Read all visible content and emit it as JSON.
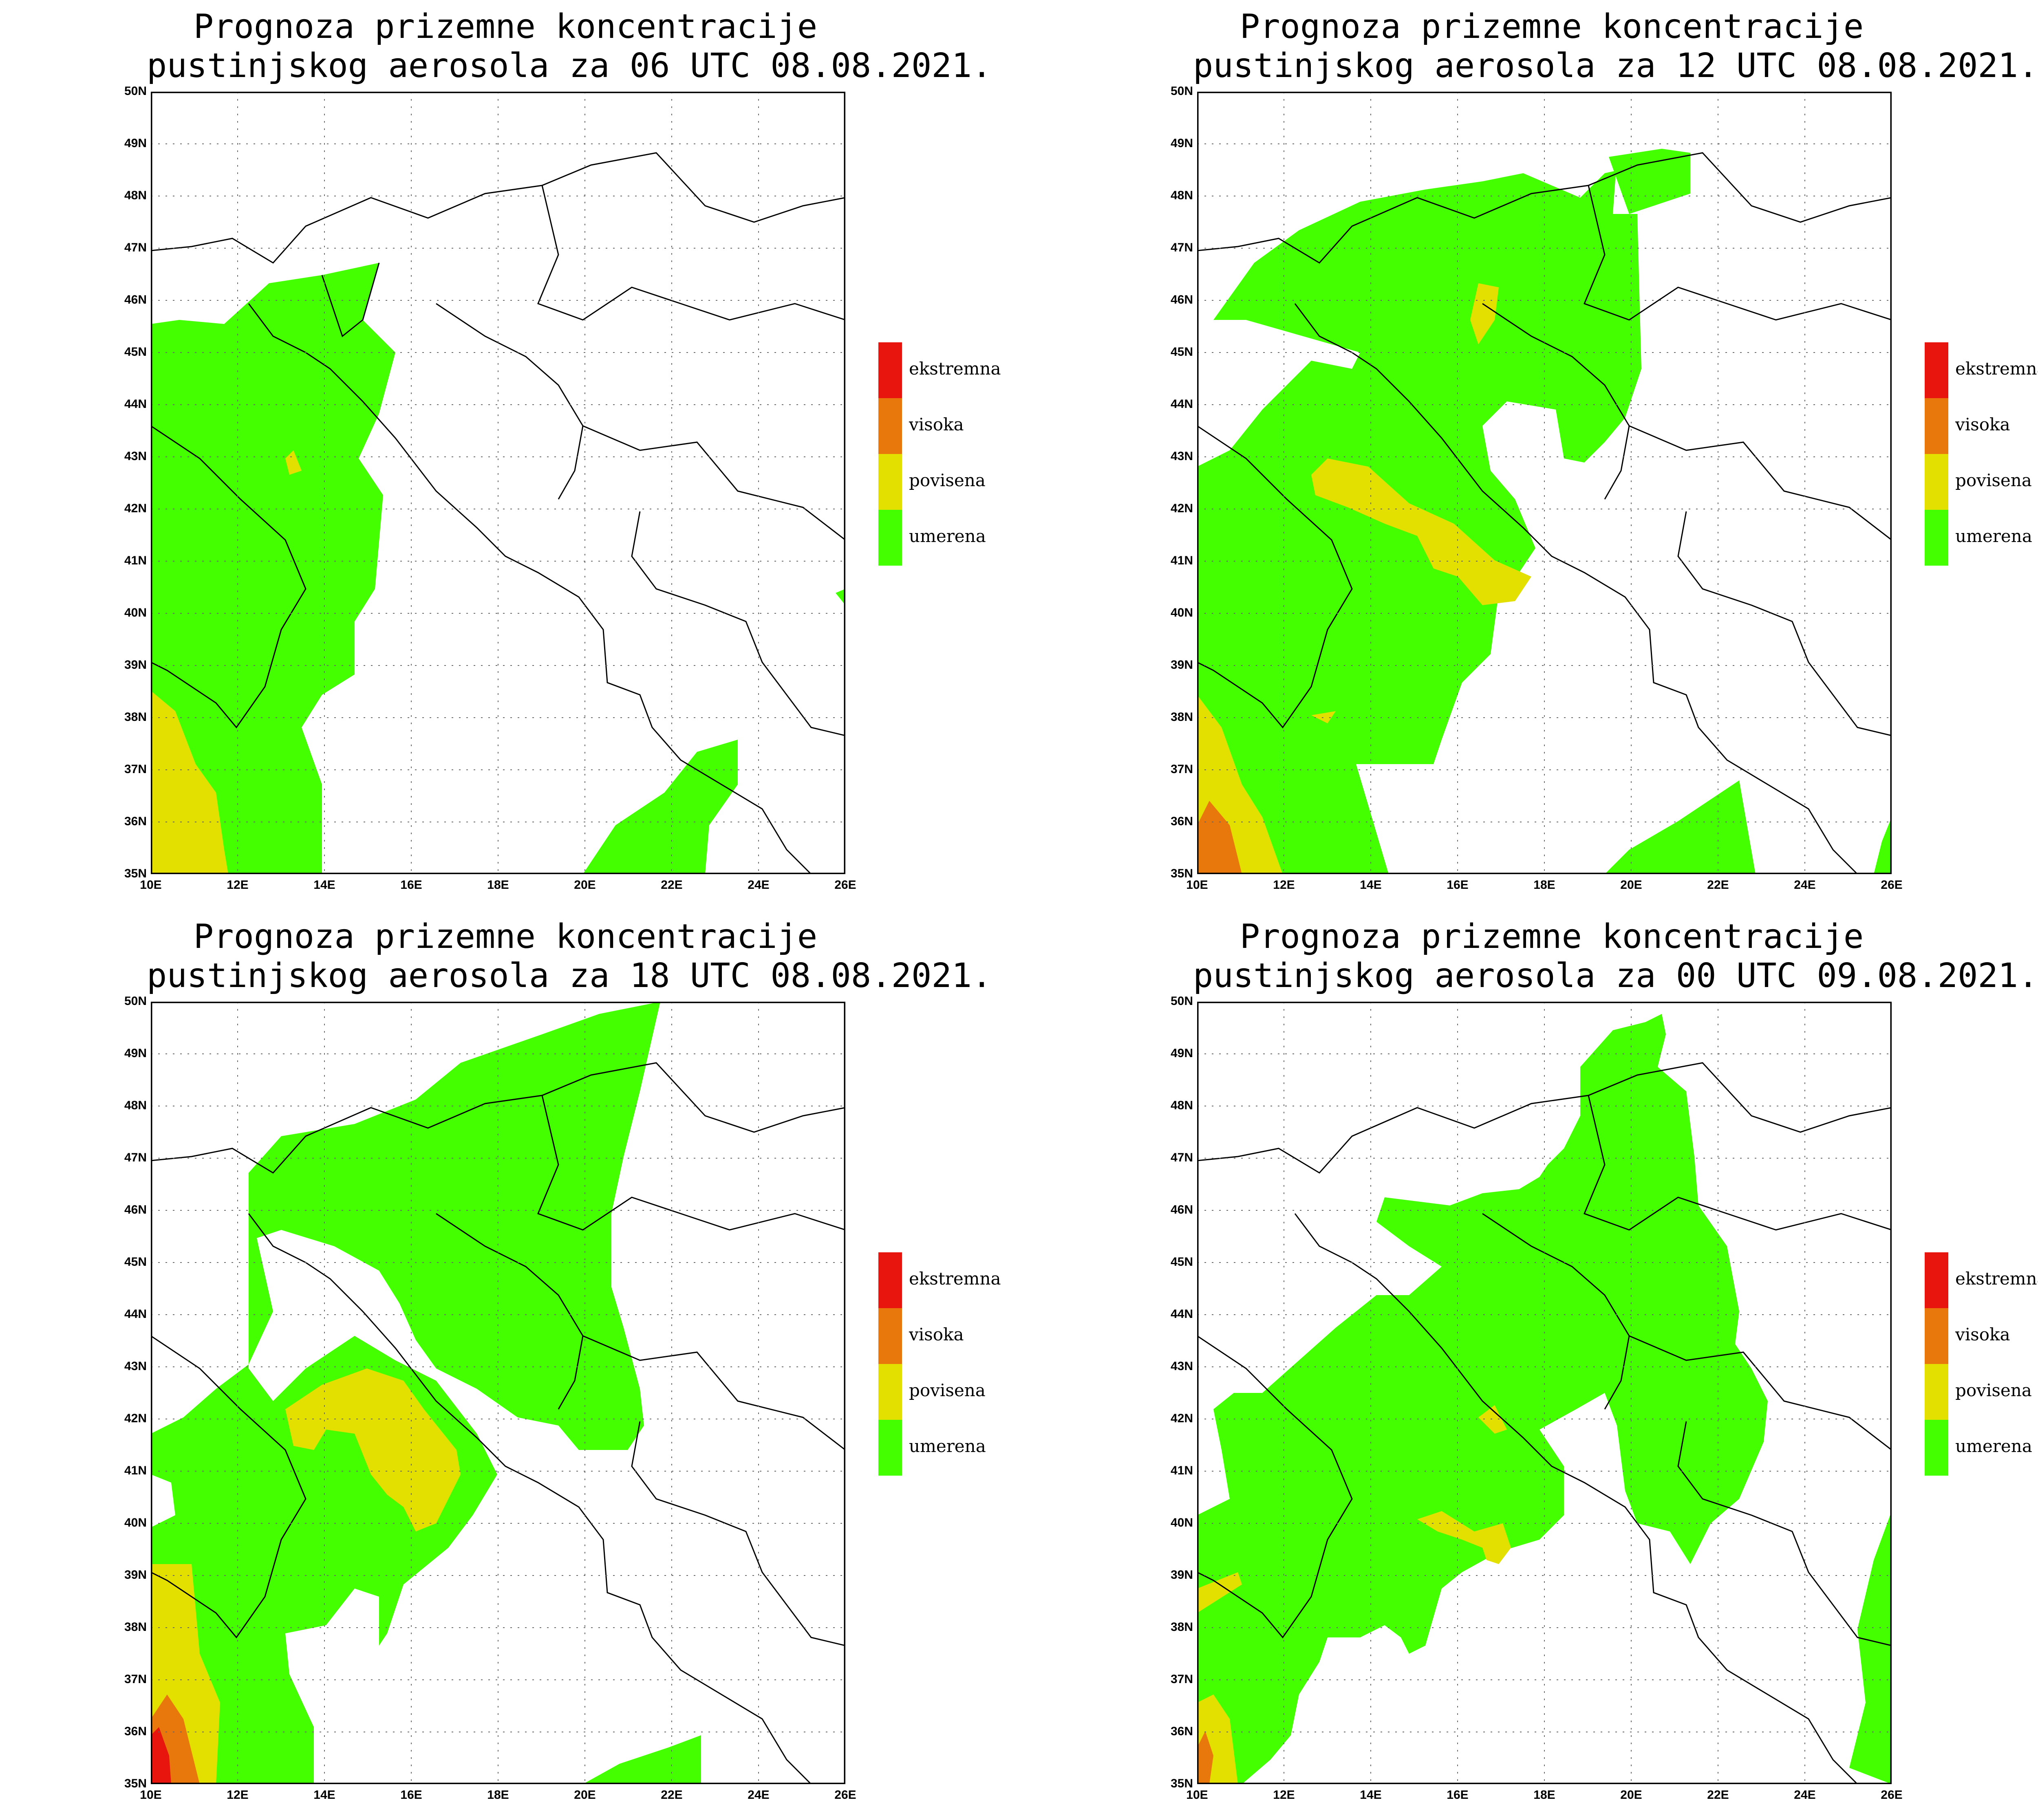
{
  "panels": [
    {
      "title_line1": "Prognoza prizemne koncentracije",
      "title_line2": "pustinjskog aerosola za 06 UTC 08.08.2021."
    },
    {
      "title_line1": "Prognoza prizemne koncentracije",
      "title_line2": "pustinjskog aerosola za 12 UTC 08.08.2021."
    },
    {
      "title_line1": "Prognoza prizemne koncentracije",
      "title_line2": "pustinjskog aerosola za 18 UTC 08.08.2021."
    },
    {
      "title_line1": "Prognoza prizemne koncentracije",
      "title_line2": "pustinjskog aerosola za 00 UTC 09.08.2021."
    }
  ],
  "lat_labels": [
    "50N",
    "49N",
    "48N",
    "47N",
    "46N",
    "45N",
    "44N",
    "43N",
    "42N",
    "41N",
    "40N",
    "39N",
    "38N",
    "37N",
    "36N",
    "35N"
  ],
  "lon_labels": [
    "10E",
    "12E",
    "14E",
    "16E",
    "18E",
    "20E",
    "22E",
    "24E",
    "26E"
  ],
  "legend": [
    {
      "label": "ekstremna",
      "color": "#e8150f"
    },
    {
      "label": "visoka",
      "color": "#e8780c"
    },
    {
      "label": "povisena",
      "color": "#e3e000"
    },
    {
      "label": "umerena",
      "color": "#44ff00"
    }
  ],
  "colors": {
    "umerena": "#44ff00",
    "povisena": "#e3e000",
    "visoka": "#e8780c",
    "ekstremna": "#e8150f"
  }
}
